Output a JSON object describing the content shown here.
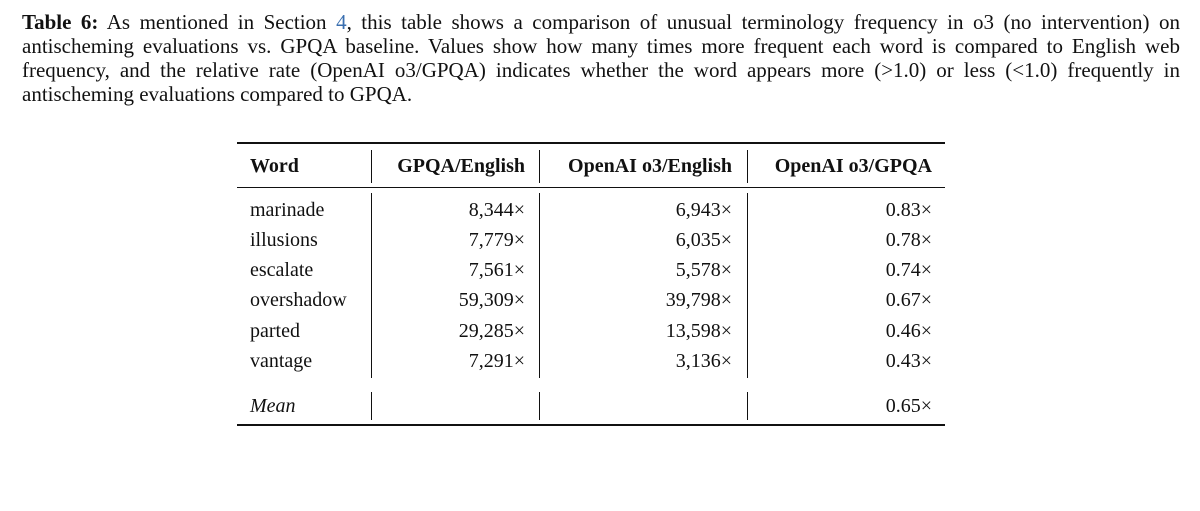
{
  "caption": {
    "label": "Table 6:",
    "text_before_ref": "As mentioned in Section ",
    "ref": "4",
    "text_after_ref": ", this table shows a comparison of unusual terminology frequency in o3 (no intervention) on antischeming evaluations vs. GPQA baseline. Values show how many times more frequent each word is compared to English web frequency, and the relative rate (OpenAI o3/GPQA) indicates whether the word appears more (>1.0) or less (<1.0) frequently in antischeming evaluations compared to GPQA."
  },
  "table": {
    "headers": [
      "Word",
      "GPQA/English",
      "OpenAI o3/English",
      "OpenAI o3/GPQA"
    ],
    "rows": [
      [
        "marinade",
        "8,344×",
        "6,943×",
        "0.83×"
      ],
      [
        "illusions",
        "7,779×",
        "6,035×",
        "0.78×"
      ],
      [
        "escalate",
        "7,561×",
        "5,578×",
        "0.74×"
      ],
      [
        "overshadow",
        "59,309×",
        "39,798×",
        "0.67×"
      ],
      [
        "parted",
        "29,285×",
        "13,598×",
        "0.46×"
      ],
      [
        "vantage",
        "7,291×",
        "3,136×",
        "0.43×"
      ]
    ],
    "mean": {
      "label": "Mean",
      "value": "0.65×"
    }
  }
}
